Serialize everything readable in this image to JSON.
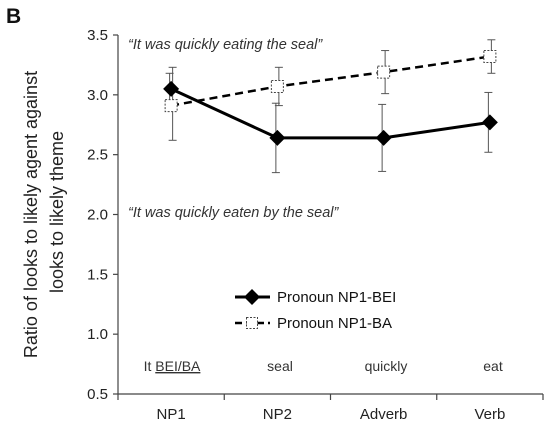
{
  "chart_data": {
    "type": "line",
    "panel_label": "B",
    "ylabel_lines": [
      "Ratio of looks to likely agent against",
      "looks to likely theme"
    ],
    "ylim": [
      0.5,
      3.5
    ],
    "yticks": [
      "0.5",
      "1.0",
      "1.5",
      "2.0",
      "2.5",
      "3.0",
      "3.5"
    ],
    "ytick_values": [
      0.5,
      1.0,
      1.5,
      2.0,
      2.5,
      3.0,
      3.5
    ],
    "categories": [
      "NP1",
      "NP2",
      "Adverb",
      "Verb"
    ],
    "words": [
      "It BEI/BA",
      "seal",
      "quickly",
      "eat"
    ],
    "word_prefix": "It ",
    "word_underlined": "BEI/BA",
    "annotation_top": "“It was quickly eating the seal”",
    "annotation_bottom": "“It was quickly eaten by the seal”",
    "series": [
      {
        "name": "Pronoun NP1-BEI",
        "style": "solid",
        "marker": "diamond",
        "color": "#000000",
        "values": [
          3.05,
          2.64,
          2.64,
          2.77
        ],
        "err_low": [
          2.92,
          2.35,
          2.36,
          2.52
        ],
        "err_high": [
          3.18,
          2.93,
          2.92,
          3.02
        ]
      },
      {
        "name": "Pronoun NP1-BA",
        "style": "dashed",
        "marker": "square",
        "color": "#000000",
        "values": [
          2.91,
          3.07,
          3.19,
          3.32
        ],
        "err_low": [
          2.62,
          2.91,
          3.01,
          3.18
        ],
        "err_high": [
          3.23,
          3.23,
          3.37,
          3.46
        ]
      }
    ],
    "legend_position": "lower-right"
  }
}
